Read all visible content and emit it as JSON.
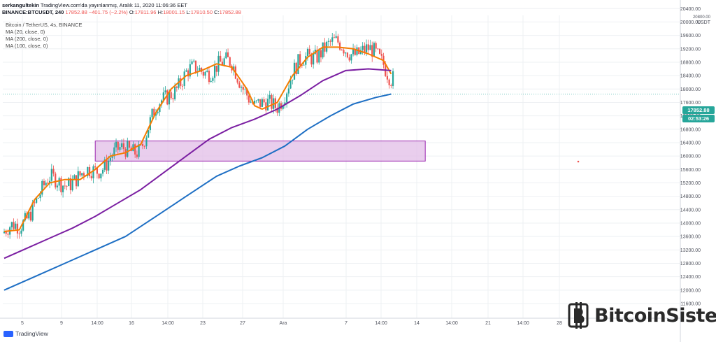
{
  "header": {
    "author": "serkangultekin",
    "published": "TradingView.com'da yayınlanmış, Aralık 11, 2020 11:06:36 EET",
    "symbol": "BINANCE:BTCUSDT, 240",
    "last": "17852.88",
    "change": "−401.75 (−2.2%)",
    "o_label": "O:",
    "o": "17811.96",
    "h_label": "H:",
    "h": "18001.15",
    "l_label": "L:",
    "l": "17810.50",
    "c_label": "C:",
    "c": "17852.88"
  },
  "legend": {
    "title": "Bitcoin / TetherUS, 4s, BINANCE",
    "ma20": "MA (20, close, 0)",
    "ma200": "MA (200, close, 0)",
    "ma100": "MA (100, close, 0)"
  },
  "price_axis": {
    "currency": "USDT",
    "last_price": "17852.88",
    "countdown": "02:53:26"
  },
  "footer": {
    "brand": "TradingView"
  },
  "watermark": {
    "text": "BitcoinSistemi"
  },
  "colors": {
    "up": "#26a69a",
    "down": "#ef5350",
    "ma20": "#f57c00",
    "ma200": "#7b1fa2",
    "ma100": "#1e6fc4",
    "zone_fill": "#e1bee7",
    "zone_stroke": "#9c27b0",
    "last_price_tag": "#26a69a",
    "grid": "#eef0f3"
  },
  "chart_data": {
    "type": "candlestick",
    "y_ticks": [
      11600,
      12000,
      12400,
      12800,
      13200,
      13600,
      14000,
      14400,
      14800,
      15200,
      15600,
      16000,
      16400,
      16800,
      17200,
      17600,
      18000,
      18400,
      18800,
      19200,
      19600,
      20000,
      20400,
      20800
    ],
    "x_ticks": [
      "5",
      "9",
      "14:00",
      "16",
      "14:00",
      "23",
      "27",
      "Ara",
      "7",
      "14:00",
      "14",
      "14:00",
      "21",
      "14:00",
      "28"
    ],
    "ylim": [
      11400,
      20900
    ],
    "series": [
      {
        "name": "MA (20, close, 0)",
        "points": [
          [
            0,
            13750
          ],
          [
            2,
            13800
          ],
          [
            4,
            14700
          ],
          [
            6,
            15200
          ],
          [
            8,
            15300
          ],
          [
            10,
            15300
          ],
          [
            12,
            15600
          ],
          [
            14,
            16000
          ],
          [
            16,
            16100
          ],
          [
            18,
            16350
          ],
          [
            20,
            17300
          ],
          [
            22,
            18000
          ],
          [
            24,
            18400
          ],
          [
            26,
            18550
          ],
          [
            28,
            18750
          ],
          [
            30,
            18650
          ],
          [
            32,
            18000
          ],
          [
            33,
            17500
          ],
          [
            34,
            17400
          ],
          [
            36,
            17600
          ],
          [
            38,
            18400
          ],
          [
            40,
            18950
          ],
          [
            42,
            19250
          ],
          [
            44,
            19250
          ],
          [
            46,
            19200
          ],
          [
            48,
            19050
          ],
          [
            50,
            18850
          ],
          [
            51,
            18450
          ]
        ]
      },
      {
        "name": "MA (200, close, 0)",
        "points": [
          [
            0,
            12950
          ],
          [
            3,
            13250
          ],
          [
            6,
            13550
          ],
          [
            9,
            13850
          ],
          [
            12,
            14200
          ],
          [
            15,
            14600
          ],
          [
            18,
            15000
          ],
          [
            21,
            15500
          ],
          [
            24,
            16000
          ],
          [
            27,
            16500
          ],
          [
            30,
            16850
          ],
          [
            33,
            17100
          ],
          [
            36,
            17400
          ],
          [
            39,
            17800
          ],
          [
            42,
            18250
          ],
          [
            45,
            18550
          ],
          [
            48,
            18600
          ],
          [
            51,
            18550
          ]
        ]
      },
      {
        "name": "MA (100, close, 0)",
        "points": [
          [
            0,
            12000
          ],
          [
            4,
            12400
          ],
          [
            8,
            12800
          ],
          [
            12,
            13200
          ],
          [
            16,
            13600
          ],
          [
            20,
            14200
          ],
          [
            24,
            14800
          ],
          [
            28,
            15400
          ],
          [
            31,
            15700
          ],
          [
            34,
            15950
          ],
          [
            37,
            16300
          ],
          [
            40,
            16800
          ],
          [
            43,
            17200
          ],
          [
            46,
            17550
          ],
          [
            49,
            17750
          ],
          [
            51,
            17850
          ]
        ]
      }
    ],
    "zone": {
      "x_range": [
        12,
        55.5
      ],
      "y_range": [
        15850,
        16450
      ]
    },
    "last_price": 17852.88
  }
}
